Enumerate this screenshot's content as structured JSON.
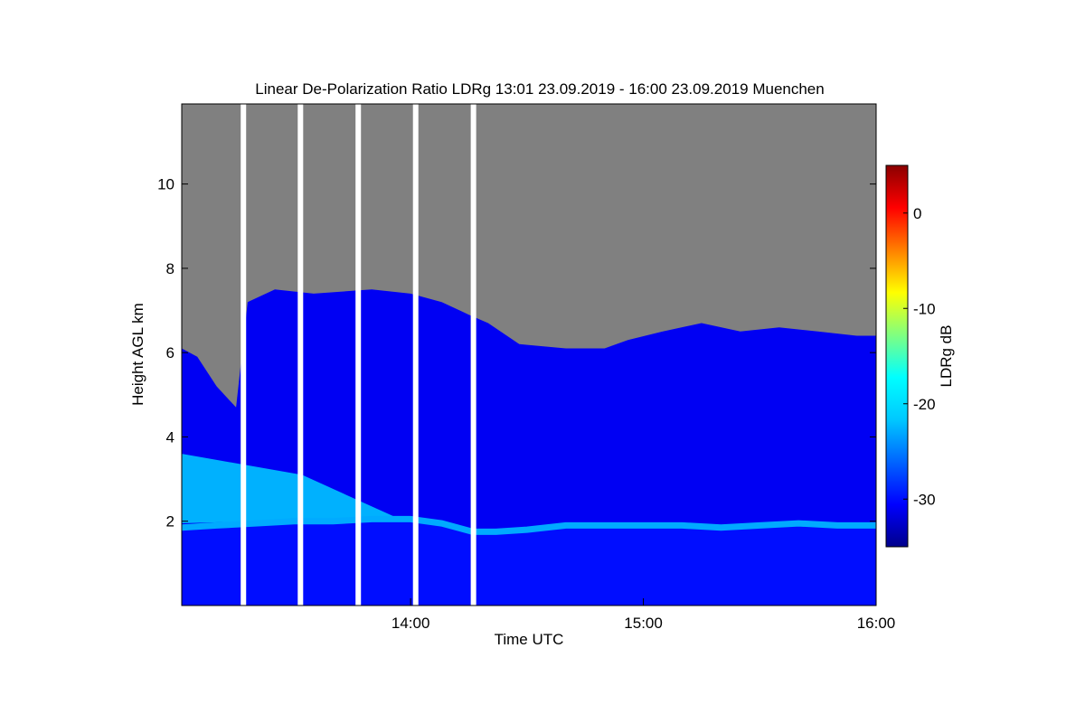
{
  "chart_data": {
    "type": "heatmap",
    "title": "Linear De-Polarization Ratio LDRg   13:01 23.09.2019 - 16:00 23.09.2019 Muenchen",
    "xlabel": "Time UTC",
    "ylabel": "Height AGL km",
    "xlim": [
      "13:01",
      "16:00"
    ],
    "ylim": [
      0,
      11.9
    ],
    "x_ticks": [
      {
        "label": "14:00",
        "minutes": 840
      },
      {
        "label": "15:00",
        "minutes": 900
      },
      {
        "label": "16:00",
        "minutes": 960
      }
    ],
    "y_ticks": [
      {
        "label": "2",
        "value": 2
      },
      {
        "label": "4",
        "value": 4
      },
      {
        "label": "6",
        "value": 6
      },
      {
        "label": "8",
        "value": 8
      },
      {
        "label": "10",
        "value": 10
      }
    ],
    "colorbar": {
      "label": "LDRg dB",
      "range": [
        -35,
        5
      ],
      "ticks": [
        {
          "label": "0",
          "value": 0
        },
        {
          "label": "-10",
          "value": -10
        },
        {
          "label": "-20",
          "value": -20
        },
        {
          "label": "-30",
          "value": -30
        }
      ],
      "colormap": [
        "#00008b",
        "#0000ff",
        "#0064ff",
        "#00c8ff",
        "#00ffff",
        "#80ff80",
        "#ffff00",
        "#ff8000",
        "#ff0000",
        "#8b0000"
      ]
    },
    "no_data_color": "#808080",
    "data_gaps_minutes": [
      [
        796.2,
        797.6
      ],
      [
        810.9,
        812.3
      ],
      [
        825.8,
        827.2
      ],
      [
        840.6,
        842.0
      ],
      [
        855.5,
        856.9
      ]
    ],
    "cloud_top_km": [
      [
        781,
        6.1
      ],
      [
        785,
        5.9
      ],
      [
        790,
        5.2
      ],
      [
        795,
        4.7
      ],
      [
        798,
        7.2
      ],
      [
        805,
        7.5
      ],
      [
        815,
        7.4
      ],
      [
        830,
        7.5
      ],
      [
        840,
        7.4
      ],
      [
        848,
        7.2
      ],
      [
        855,
        6.9
      ],
      [
        860,
        6.7
      ],
      [
        868,
        6.2
      ],
      [
        880,
        6.1
      ],
      [
        890,
        6.1
      ],
      [
        896,
        6.3
      ],
      [
        905,
        6.5
      ],
      [
        915,
        6.7
      ],
      [
        925,
        6.5
      ],
      [
        935,
        6.6
      ],
      [
        945,
        6.5
      ],
      [
        955,
        6.4
      ],
      [
        960,
        6.4
      ]
    ],
    "boundary_layer_top_km": [
      [
        781,
        1.85
      ],
      [
        790,
        1.9
      ],
      [
        800,
        1.95
      ],
      [
        810,
        2.0
      ],
      [
        820,
        2.0
      ],
      [
        830,
        2.05
      ],
      [
        840,
        2.05
      ],
      [
        848,
        1.95
      ],
      [
        856,
        1.75
      ],
      [
        862,
        1.75
      ],
      [
        870,
        1.8
      ],
      [
        880,
        1.9
      ],
      [
        890,
        1.9
      ],
      [
        900,
        1.9
      ],
      [
        910,
        1.9
      ],
      [
        920,
        1.85
      ],
      [
        930,
        1.9
      ],
      [
        940,
        1.95
      ],
      [
        950,
        1.9
      ],
      [
        960,
        1.9
      ]
    ],
    "lower_layer_ldr_db": -30,
    "boundary_layer_ldr_db": -23,
    "ice_cloud_ldr_db": -21,
    "cloud_body_ldr_db": -31
  }
}
